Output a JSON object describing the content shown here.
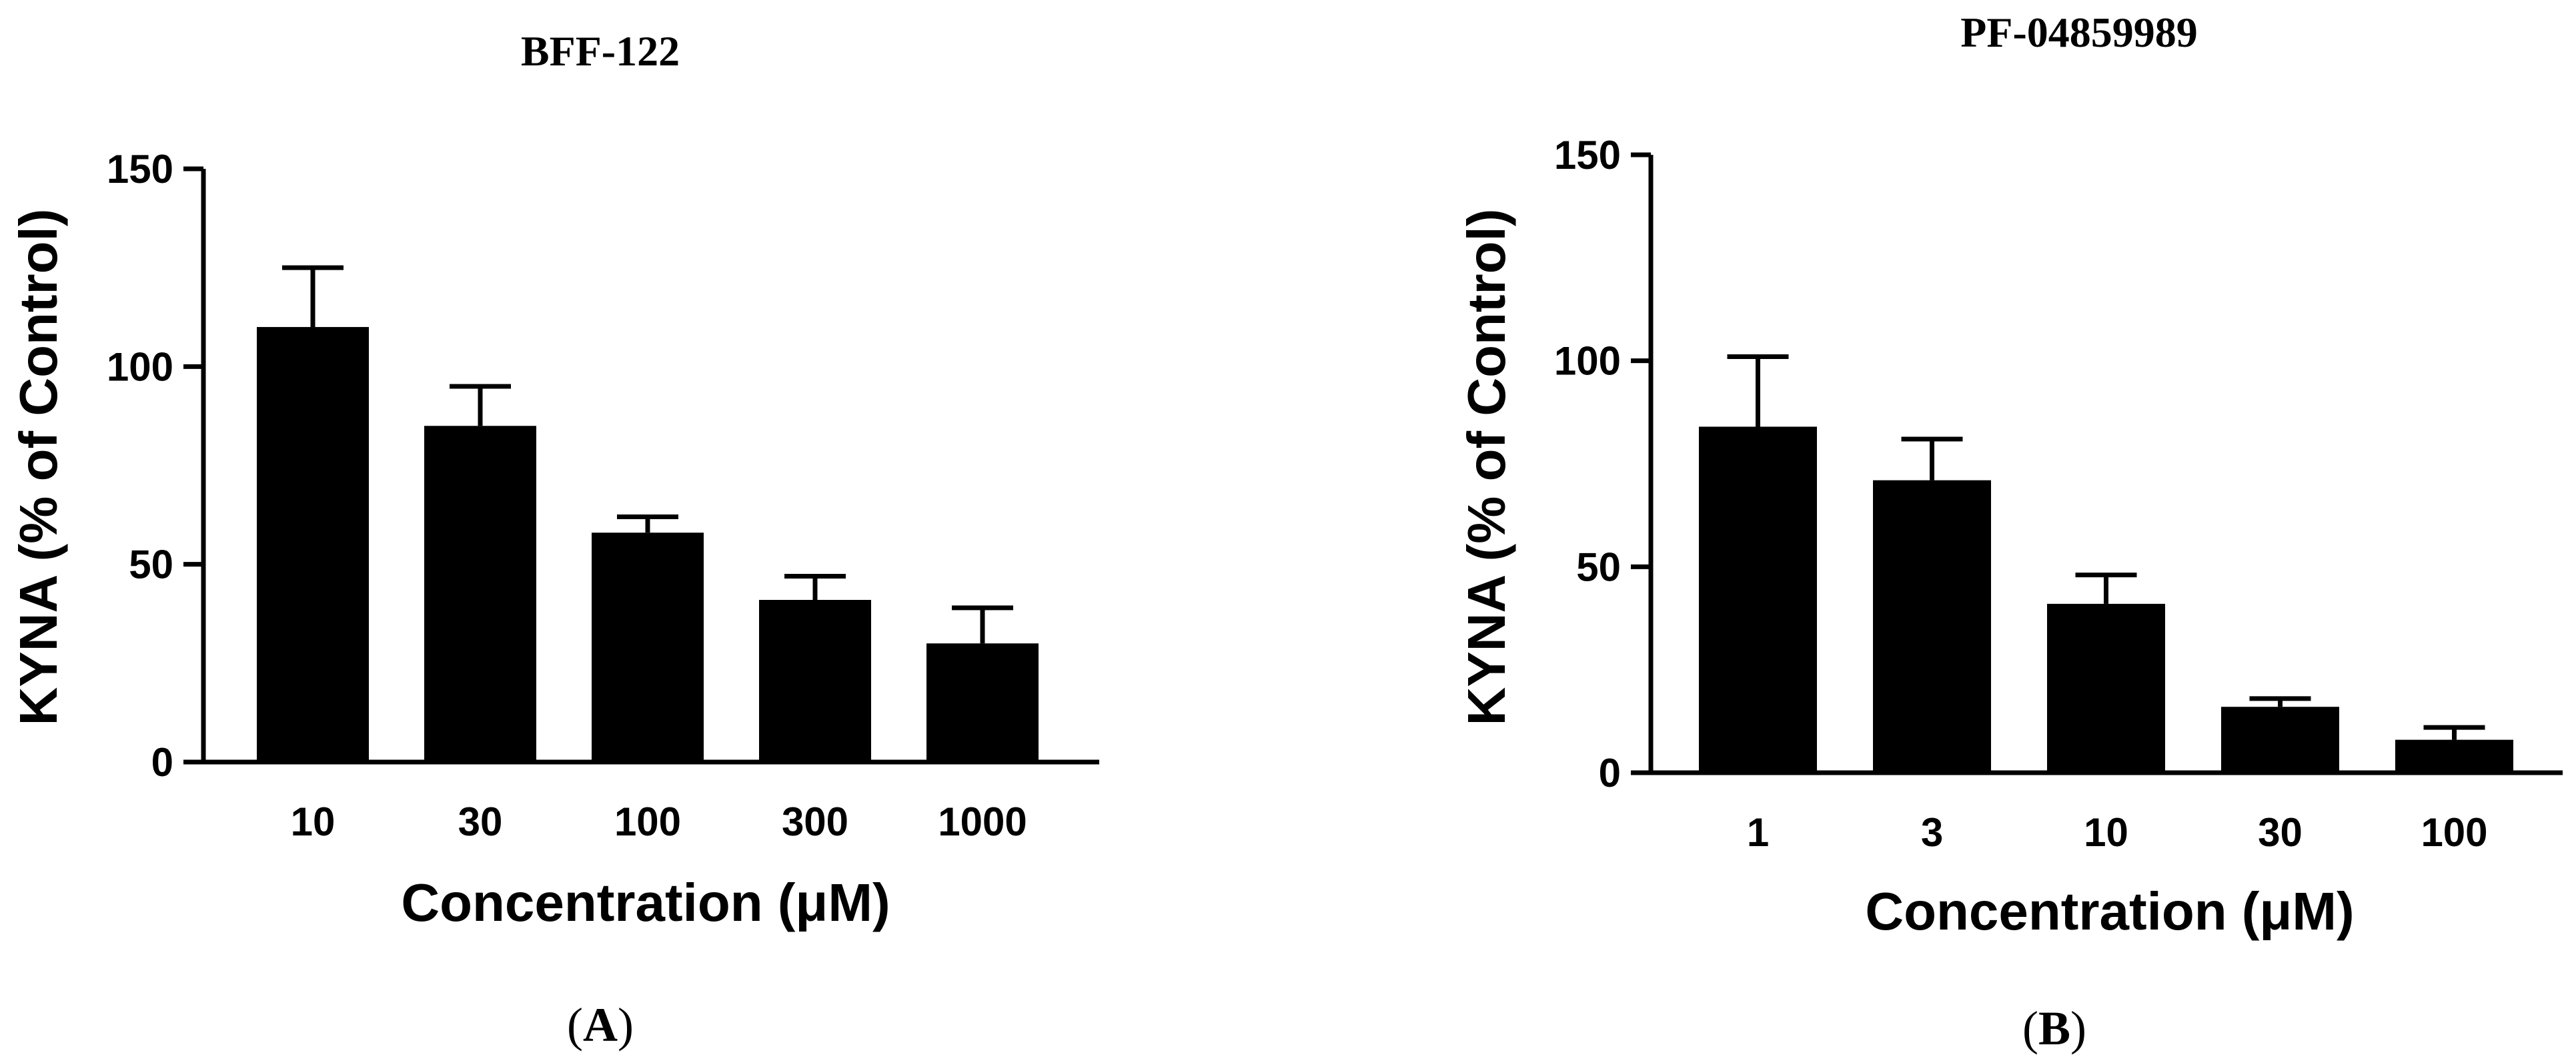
{
  "chart_data": [
    {
      "type": "bar",
      "panel": "A",
      "title": "BFF-122",
      "xlabel": "Concentration (μM)",
      "ylabel": "KYNA (% of Control)",
      "categories": [
        "10",
        "30",
        "100",
        "300",
        "1000"
      ],
      "values": [
        110,
        85,
        58,
        41,
        30
      ],
      "errors": [
        15,
        10,
        4,
        6,
        9
      ],
      "ylim": [
        0,
        150
      ],
      "yticks": [
        0,
        50,
        100,
        150
      ],
      "bar_color": "#000000",
      "grid": false
    },
    {
      "type": "bar",
      "panel": "B",
      "title": "PF-04859989",
      "xlabel": "Concentration (μM)",
      "ylabel": "KYNA (% of Control)",
      "categories": [
        "1",
        "3",
        "10",
        "30",
        "100"
      ],
      "values": [
        84,
        71,
        41,
        16,
        8
      ],
      "errors": [
        17,
        10,
        7,
        2,
        3
      ],
      "ylim": [
        0,
        150
      ],
      "yticks": [
        0,
        50,
        100,
        150
      ],
      "bar_color": "#000000",
      "grid": false
    }
  ]
}
